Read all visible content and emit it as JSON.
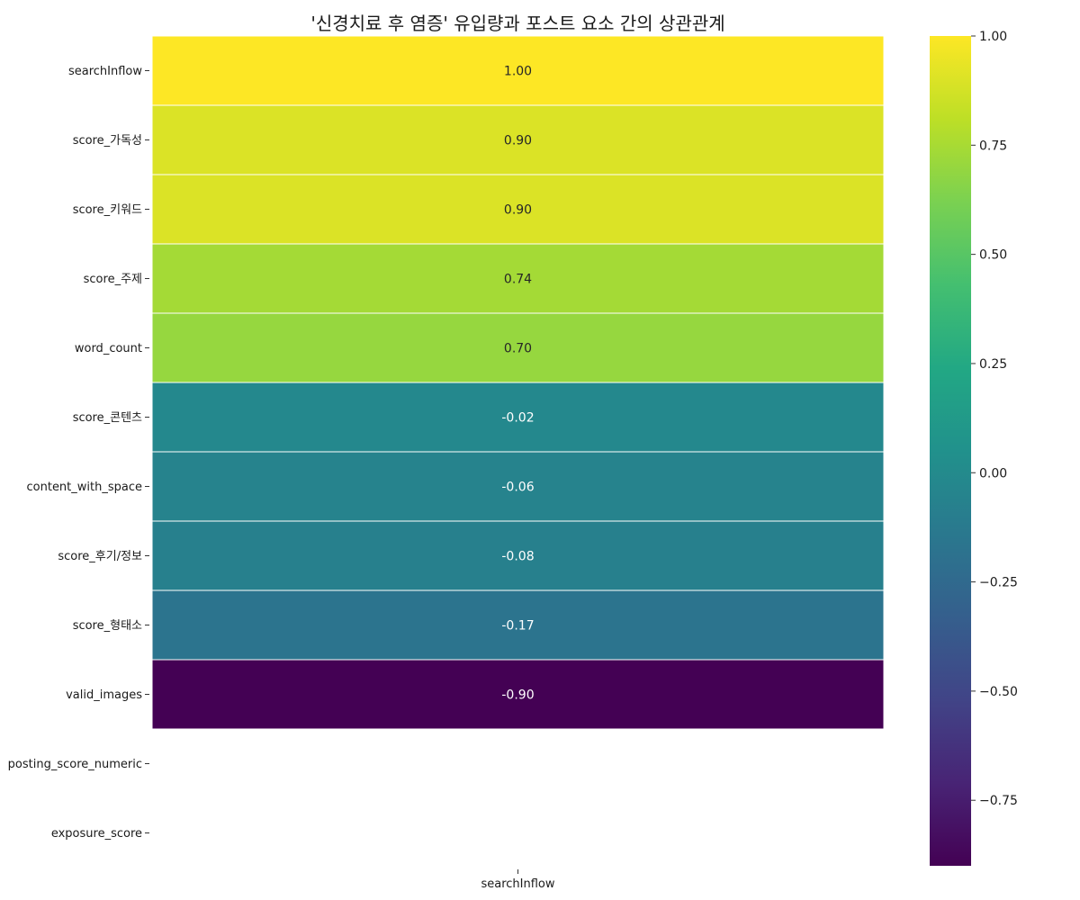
{
  "chart_data": {
    "type": "heatmap",
    "title": "'신경치료 후 염증' 유입량과 포스트 요소 간의 상관관계",
    "columns": [
      "searchInflow"
    ],
    "rows": [
      {
        "label": "searchInflow",
        "value": 1.0,
        "text": "1.00"
      },
      {
        "label": "score_가독성",
        "value": 0.9,
        "text": "0.90"
      },
      {
        "label": "score_키워드",
        "value": 0.9,
        "text": "0.90"
      },
      {
        "label": "score_주제",
        "value": 0.74,
        "text": "0.74"
      },
      {
        "label": "word_count",
        "value": 0.7,
        "text": "0.70"
      },
      {
        "label": "score_콘텐츠",
        "value": -0.02,
        "text": "-0.02"
      },
      {
        "label": "content_with_space",
        "value": -0.06,
        "text": "-0.06"
      },
      {
        "label": "score_후기/정보",
        "value": -0.08,
        "text": "-0.08"
      },
      {
        "label": "score_형태소",
        "value": -0.17,
        "text": "-0.17"
      },
      {
        "label": "valid_images",
        "value": -0.9,
        "text": "-0.90"
      },
      {
        "label": "posting_score_numeric",
        "value": null,
        "text": ""
      },
      {
        "label": "exposure_score",
        "value": null,
        "text": ""
      }
    ],
    "colorbar": {
      "colormap": "viridis",
      "vmin": -0.9,
      "vmax": 1.0,
      "ticks": [
        1.0,
        0.75,
        0.5,
        0.25,
        0.0,
        -0.25,
        -0.5,
        -0.75
      ],
      "tick_labels": [
        "1.00",
        "0.75",
        "0.50",
        "0.25",
        "0.00",
        "−0.25",
        "−0.50",
        "−0.75"
      ]
    },
    "annotations": true,
    "grid": false
  }
}
